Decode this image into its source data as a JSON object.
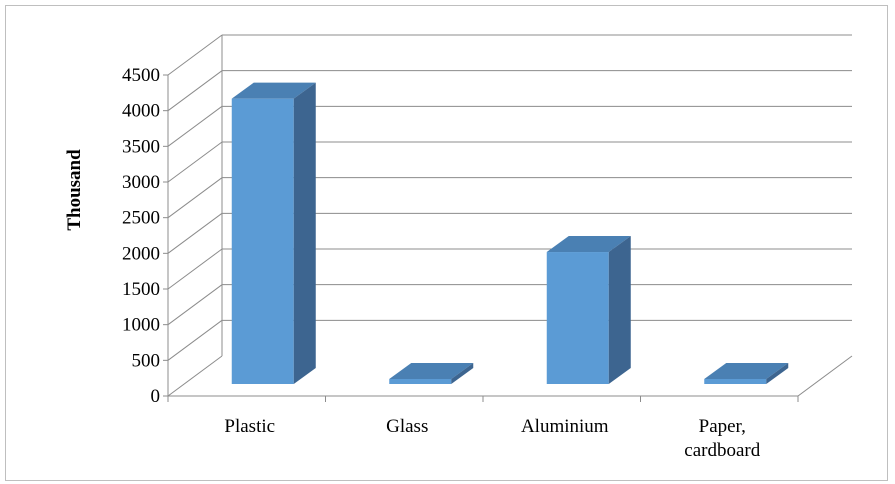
{
  "chart_data": {
    "type": "bar",
    "style": "3d-column",
    "categories": [
      [
        "Plastic"
      ],
      [
        "Glass"
      ],
      [
        "Aluminium"
      ],
      [
        "Paper,",
        "cardboard"
      ]
    ],
    "values": [
      4000,
      60,
      1850,
      50
    ],
    "ylabel": "Thousand",
    "xlabel": "",
    "ylim": [
      0,
      4500
    ],
    "yticks": [
      0,
      500,
      1000,
      1500,
      2000,
      2500,
      3000,
      3500,
      4000,
      4500
    ],
    "grid": true,
    "legend": "none",
    "colors": {
      "bar_front": "#5b9bd5",
      "bar_top": "#4a80b3",
      "bar_side": "#3d6590",
      "gridline": "#8c8c8c",
      "axis": "#8c8c8c"
    }
  }
}
